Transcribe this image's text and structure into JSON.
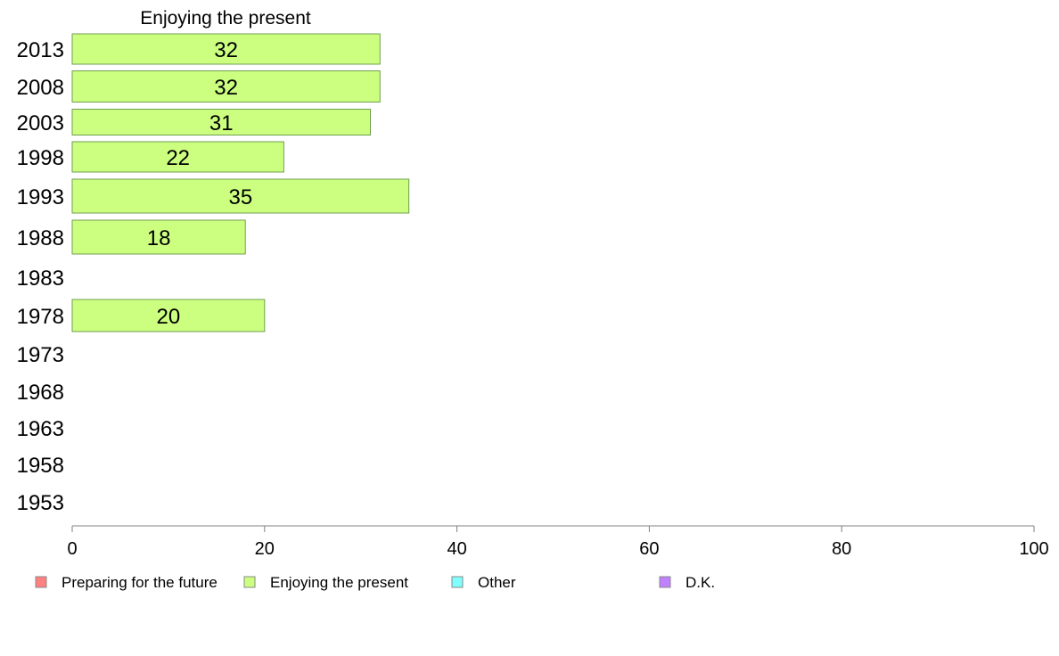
{
  "chart_data": {
    "type": "bar",
    "orientation": "horizontal",
    "title": "Enjoying the present",
    "categories": [
      "2013",
      "2008",
      "2003",
      "1998",
      "1993",
      "1988",
      "1983",
      "1978",
      "1973",
      "1968",
      "1963",
      "1958",
      "1953"
    ],
    "series": [
      {
        "name": "Enjoying the present",
        "values": [
          32,
          32,
          31,
          22,
          35,
          18,
          null,
          20,
          null,
          null,
          null,
          null,
          null
        ]
      }
    ],
    "xlim": [
      0,
      100
    ],
    "xticks": [
      0,
      20,
      40,
      60,
      80,
      100
    ],
    "grid": false,
    "legend": {
      "placement": "bottom",
      "items": [
        {
          "label": "Preparing for the future",
          "color": "#ff8080"
        },
        {
          "label": "Enjoying the present",
          "color": "#ccff80"
        },
        {
          "label": "Other",
          "color": "#80ffff"
        },
        {
          "label": "D.K.",
          "color": "#c080ff"
        }
      ]
    },
    "colors": {
      "bar_fill": "#ccff80",
      "bar_stroke": "#6f9f4f",
      "axis": "#808080"
    }
  }
}
